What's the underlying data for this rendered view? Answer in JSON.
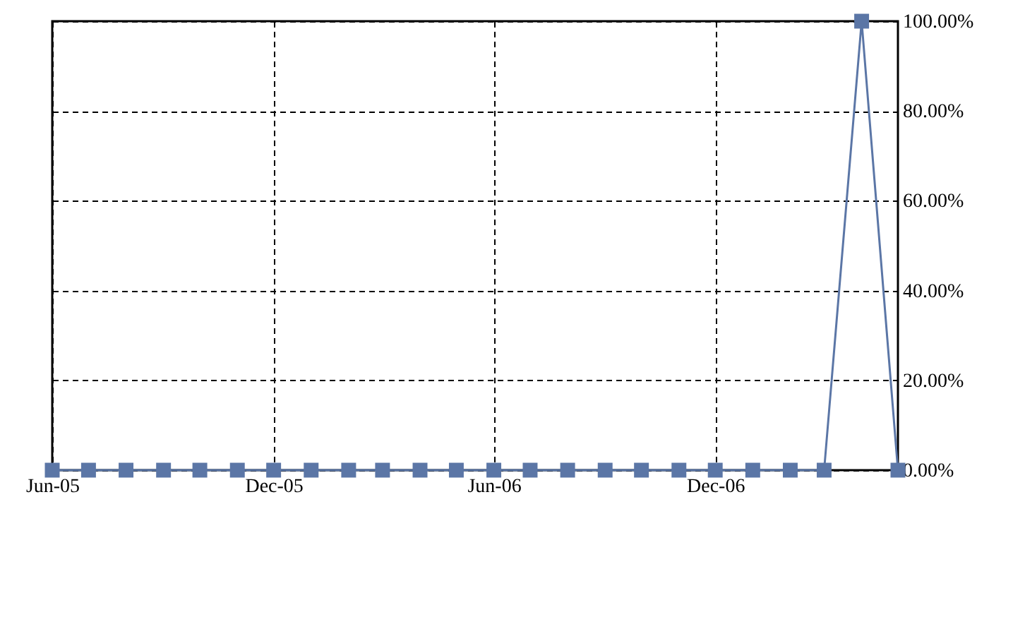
{
  "chart_data": {
    "type": "line",
    "x": [
      "2005-06",
      "2005-07",
      "2005-08",
      "2005-09",
      "2005-10",
      "2005-11",
      "2005-12",
      "2006-01",
      "2006-02",
      "2006-03",
      "2006-04",
      "2006-05",
      "2006-06",
      "2006-07",
      "2006-08",
      "2006-09",
      "2006-10",
      "2006-11",
      "2006-12",
      "2007-01",
      "2007-02",
      "2007-03",
      "2007-04",
      "2007-05"
    ],
    "series": [
      {
        "color": "#5b76a6",
        "values": [
          0,
          0,
          0,
          0,
          0,
          0,
          0,
          0,
          0,
          0,
          0,
          0,
          0,
          0,
          0,
          0,
          0,
          0,
          0,
          0,
          0,
          0,
          100,
          0
        ]
      }
    ],
    "xlim": [
      "2005-06",
      "2007-05"
    ],
    "xticks": [
      {
        "value": "2005-06",
        "label": "Jun-05"
      },
      {
        "value": "2005-12",
        "label": "Dec-05"
      },
      {
        "value": "2006-06",
        "label": "Jun-06"
      },
      {
        "value": "2006-12",
        "label": "Dec-06"
      }
    ],
    "ylim": [
      0,
      100
    ],
    "yticks": [
      {
        "value": 0,
        "label": "0.00%"
      },
      {
        "value": 20,
        "label": "20.00%"
      },
      {
        "value": 40,
        "label": "40.00%"
      },
      {
        "value": 60,
        "label": "60.00%"
      },
      {
        "value": 80,
        "label": "80.00%"
      },
      {
        "value": 100,
        "label": "100.00%"
      }
    ],
    "grid": true,
    "marker": "square",
    "line_style": "solid"
  }
}
